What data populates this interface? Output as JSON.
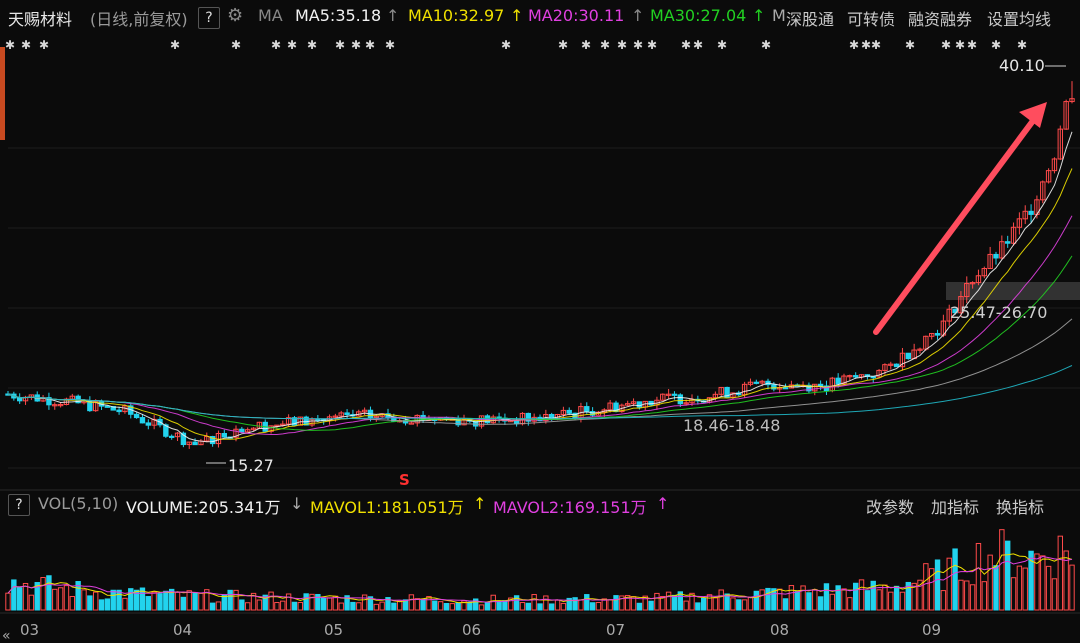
{
  "header": {
    "stock_name": "天赐材料",
    "period": "(日线,前复权)",
    "help": "?",
    "ma_label": "MA",
    "ma5": "MA5:35.18",
    "ma5_arrow": "↑",
    "ma10": "MA10:32.97",
    "ma10_arrow": "↑",
    "ma20": "MA20:30.11",
    "ma20_arrow": "↑",
    "ma30": "MA30:27.04",
    "ma30_arrow": "↑",
    "ma_more": "M",
    "buttons": [
      "深股通",
      "可转债",
      "融资融券",
      "设置均线"
    ]
  },
  "volume_header": {
    "help": "?",
    "indicator": "VOL(5,10)",
    "volume": "VOLUME:205.341万",
    "volume_arrow": "↓",
    "mavol1": "MAVOL1:181.051万",
    "mavol1_arrow": "↑",
    "mavol2": "MAVOL2:169.151万",
    "mavol2_arrow": "↑",
    "buttons": [
      "改参数",
      "加指标",
      "换指标"
    ]
  },
  "annotations": {
    "high_label": "40.10",
    "low_label": "15.27",
    "band_label": "25.47-26.70",
    "mid_label": "18.46-18.48",
    "signal_mark": "S"
  },
  "colors": {
    "up": "#ff4a4a",
    "down": "#22d3ee",
    "ma5": "#f2f2f2",
    "ma10": "#f0e000",
    "ma20": "#e040e0",
    "ma30": "#22d022",
    "arrow": "#ff4d5e"
  },
  "chart_data": {
    "type": "candlestick",
    "months": [
      "03",
      "04",
      "05",
      "06",
      "07",
      "08",
      "09"
    ],
    "high": 40.1,
    "low": 15.27,
    "ma_values": {
      "MA5": 35.18,
      "MA10": 32.97,
      "MA20": 30.11,
      "MA30": 27.04
    },
    "volume_values": {
      "VOLUME": 205.341,
      "MAVOL1": 181.051,
      "MAVOL2": 169.151,
      "unit": "万"
    },
    "price_path": [
      [
        0,
        18.7
      ],
      [
        10,
        18.2
      ],
      [
        20,
        17.5
      ],
      [
        32,
        15.27
      ],
      [
        40,
        16.4
      ],
      [
        50,
        16.8
      ],
      [
        60,
        17.2
      ],
      [
        70,
        17.1
      ],
      [
        80,
        16.9
      ],
      [
        90,
        17.0
      ],
      [
        100,
        17.6
      ],
      [
        110,
        18.3
      ],
      [
        120,
        18.6
      ],
      [
        130,
        19.4
      ],
      [
        140,
        19.3
      ],
      [
        150,
        20.3
      ],
      [
        160,
        23.5
      ],
      [
        165,
        26.6
      ],
      [
        170,
        28.6
      ],
      [
        175,
        31.5
      ],
      [
        179,
        35.2
      ],
      [
        182,
        40.1
      ]
    ],
    "volume_path": [
      [
        0,
        70
      ],
      [
        15,
        45
      ],
      [
        30,
        35
      ],
      [
        50,
        30
      ],
      [
        80,
        25
      ],
      [
        110,
        28
      ],
      [
        130,
        42
      ],
      [
        150,
        55
      ],
      [
        160,
        90
      ],
      [
        168,
        140
      ],
      [
        175,
        130
      ],
      [
        182,
        150
      ]
    ]
  }
}
